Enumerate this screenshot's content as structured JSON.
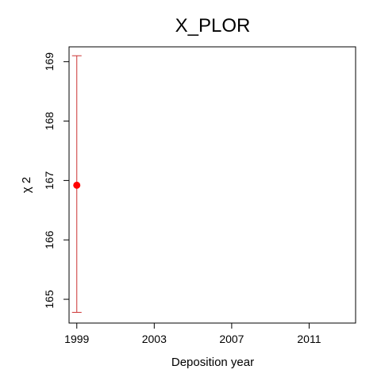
{
  "chart_data": {
    "type": "scatter",
    "title": "X_PLOR",
    "xlabel": "Deposition year",
    "ylabel": "χ 2",
    "xlim": [
      1998.6,
      2013.4
    ],
    "ylim": [
      164.6,
      169.25
    ],
    "xticks": [
      1999,
      2003,
      2007,
      2011
    ],
    "yticks": [
      165,
      166,
      167,
      168,
      169
    ],
    "grid": false,
    "legend": "none",
    "series": [
      {
        "points": [
          {
            "x": 1999,
            "y": 166.92,
            "low": 164.78,
            "high": 169.1
          }
        ]
      }
    ],
    "colors": {
      "point": "#ff0000",
      "errorbar": "#cc3333",
      "axis": "#000000"
    }
  }
}
